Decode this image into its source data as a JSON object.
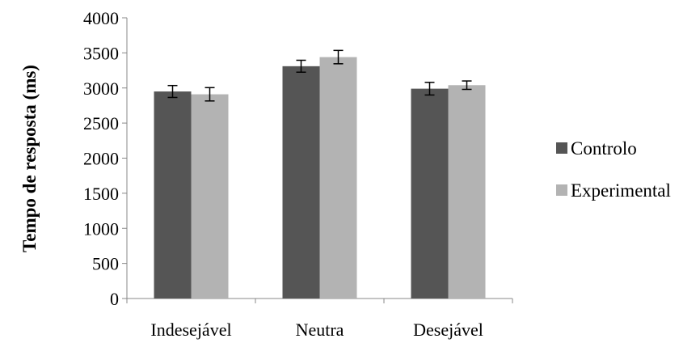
{
  "chart_data": {
    "type": "bar",
    "title": "",
    "xlabel": "",
    "ylabel": "Tempo de resposta (ms)",
    "ylim": [
      0,
      4000
    ],
    "yticks": [
      0,
      500,
      1000,
      1500,
      2000,
      2500,
      3000,
      3500,
      4000
    ],
    "categories": [
      "Indesejável",
      "Neutra",
      "Desejável"
    ],
    "series": [
      {
        "name": "Controlo",
        "color": "#555555",
        "values": [
          2950,
          3310,
          2990
        ],
        "errors": [
          85,
          85,
          90
        ]
      },
      {
        "name": "Experimental",
        "color": "#b3b3b3",
        "values": [
          2910,
          3440,
          3040
        ],
        "errors": [
          95,
          95,
          60
        ]
      }
    ],
    "grid": false,
    "legend_position": "right",
    "error_bars": true
  }
}
